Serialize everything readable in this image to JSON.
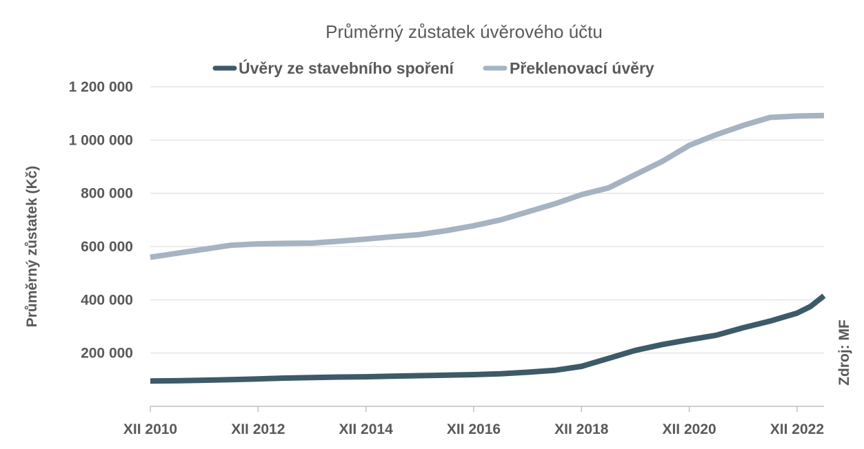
{
  "chart_data": {
    "type": "line",
    "title": "Průměrný zůstatek úvěrového účtu",
    "ylabel": "Průměrný zůstatek (Kč)",
    "xlabel": "",
    "source": "Zdroj: MF",
    "ylim": [
      0,
      1200000
    ],
    "y_ticks": [
      200000,
      400000,
      600000,
      800000,
      1000000,
      1200000
    ],
    "y_tick_labels": [
      "200 000",
      "400 000",
      "600 000",
      "800 000",
      "1 000 000",
      "1 200 000"
    ],
    "x_ticks": [
      2010.917,
      2012.917,
      2014.917,
      2016.917,
      2018.917,
      2020.917,
      2022.917
    ],
    "x_tick_labels": [
      "XII 2010",
      "XII 2012",
      "XII 2014",
      "XII 2016",
      "XII 2018",
      "XII 2020",
      "XII 2022"
    ],
    "xlim": [
      2010.917,
      2023.417
    ],
    "legend_position": "top",
    "grid": true,
    "series": [
      {
        "name": "Úvěry ze stavebního spoření",
        "color": "#3d5a68",
        "x": [
          2010.917,
          2011.417,
          2011.917,
          2012.417,
          2012.917,
          2013.417,
          2013.917,
          2014.417,
          2014.917,
          2015.417,
          2015.917,
          2016.417,
          2016.917,
          2017.417,
          2017.917,
          2018.417,
          2018.917,
          2019.417,
          2019.917,
          2020.417,
          2020.917,
          2021.417,
          2021.917,
          2022.417,
          2022.917,
          2023.167,
          2023.417
        ],
        "y": [
          95000,
          96000,
          98000,
          100000,
          103000,
          106000,
          108000,
          110000,
          111000,
          113000,
          115000,
          117000,
          119000,
          122000,
          128000,
          135000,
          150000,
          180000,
          210000,
          232000,
          250000,
          267000,
          295000,
          320000,
          350000,
          375000,
          415000
        ]
      },
      {
        "name": "Překlenovací úvěry",
        "color": "#a5b3c2",
        "x": [
          2010.917,
          2011.417,
          2011.917,
          2012.417,
          2012.917,
          2013.417,
          2013.917,
          2014.417,
          2014.917,
          2015.417,
          2015.917,
          2016.417,
          2016.917,
          2017.417,
          2017.917,
          2018.417,
          2018.917,
          2019.417,
          2019.917,
          2020.417,
          2020.917,
          2021.417,
          2021.917,
          2022.417,
          2022.917,
          2023.167,
          2023.417
        ],
        "y": [
          560000,
          575000,
          590000,
          605000,
          610000,
          612000,
          613000,
          620000,
          628000,
          637000,
          645000,
          660000,
          678000,
          700000,
          730000,
          760000,
          795000,
          820000,
          870000,
          920000,
          980000,
          1020000,
          1055000,
          1085000,
          1090000,
          1091000,
          1092000
        ]
      }
    ]
  }
}
